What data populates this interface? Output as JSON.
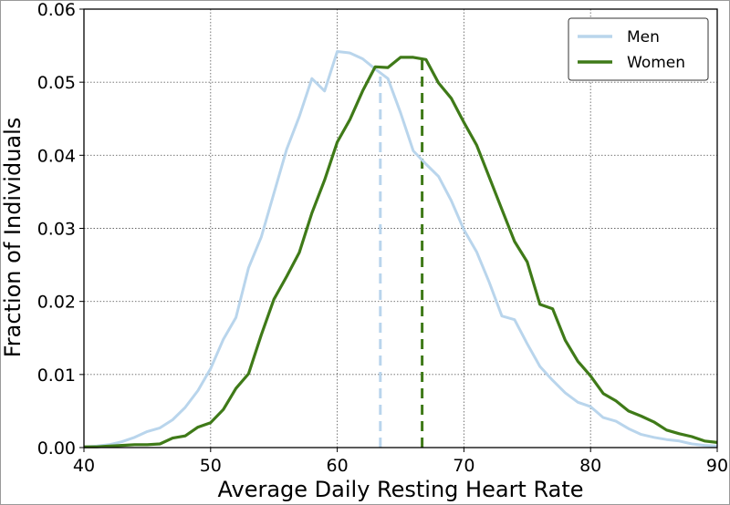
{
  "chart_data": {
    "type": "line",
    "title": "",
    "xlabel": "Average Daily Resting Heart Rate",
    "ylabel": "Fraction of Individuals",
    "xlim": [
      40,
      90
    ],
    "ylim": [
      0,
      0.06
    ],
    "xticks": [
      "40",
      "50",
      "60",
      "70",
      "80",
      "90"
    ],
    "yticks": [
      "0.00",
      "0.01",
      "0.02",
      "0.03",
      "0.04",
      "0.05",
      "0.06"
    ],
    "grid": true,
    "legend_position": "top-right",
    "series": [
      {
        "name": "Men",
        "color": "#b9d5ec",
        "mean": 63.4,
        "x": [
          40,
          41,
          42,
          43,
          44,
          45,
          46,
          47,
          48,
          49,
          50,
          51,
          52,
          53,
          54,
          55,
          56,
          57,
          58,
          59,
          60,
          61,
          62,
          63,
          64,
          65,
          66,
          67,
          68,
          69,
          70,
          71,
          72,
          73,
          74,
          75,
          76,
          77,
          78,
          79,
          80,
          81,
          82,
          83,
          84,
          85,
          86,
          87,
          88,
          89,
          90
        ],
        "y": [
          0.0001,
          0.0002,
          0.0004,
          0.0008,
          0.0014,
          0.0022,
          0.0027,
          0.0038,
          0.0055,
          0.0078,
          0.0108,
          0.0148,
          0.0178,
          0.0246,
          0.0288,
          0.0348,
          0.0408,
          0.0453,
          0.0505,
          0.0488,
          0.0542,
          0.054,
          0.0532,
          0.0518,
          0.0505,
          0.0458,
          0.0406,
          0.0388,
          0.0371,
          0.0338,
          0.0298,
          0.0268,
          0.0226,
          0.018,
          0.0175,
          0.0142,
          0.0111,
          0.0092,
          0.0075,
          0.0062,
          0.0056,
          0.0041,
          0.0036,
          0.0026,
          0.0018,
          0.0014,
          0.0011,
          0.0009,
          0.0005,
          0.0003,
          0.0002
        ]
      },
      {
        "name": "Women",
        "color": "#3f7a18",
        "mean": 66.7,
        "x": [
          40,
          41,
          42,
          43,
          44,
          45,
          46,
          47,
          48,
          49,
          50,
          51,
          52,
          53,
          54,
          55,
          56,
          57,
          58,
          59,
          60,
          61,
          62,
          63,
          64,
          65,
          66,
          67,
          68,
          69,
          70,
          71,
          72,
          73,
          74,
          75,
          76,
          77,
          78,
          79,
          80,
          81,
          82,
          83,
          84,
          85,
          86,
          87,
          88,
          89,
          90
        ],
        "y": [
          0.0001,
          0.0001,
          0.0002,
          0.0003,
          0.0004,
          0.0004,
          0.0005,
          0.0013,
          0.0016,
          0.0028,
          0.0034,
          0.0052,
          0.0081,
          0.0101,
          0.0154,
          0.0203,
          0.0234,
          0.0267,
          0.0321,
          0.0366,
          0.0418,
          0.0449,
          0.0488,
          0.0521,
          0.052,
          0.0534,
          0.0534,
          0.0531,
          0.0499,
          0.0478,
          0.0445,
          0.0414,
          0.037,
          0.0326,
          0.0282,
          0.0254,
          0.0196,
          0.019,
          0.0147,
          0.0118,
          0.0098,
          0.0074,
          0.0064,
          0.005,
          0.0043,
          0.0035,
          0.0024,
          0.0019,
          0.0015,
          0.0009,
          0.0007
        ]
      }
    ]
  }
}
